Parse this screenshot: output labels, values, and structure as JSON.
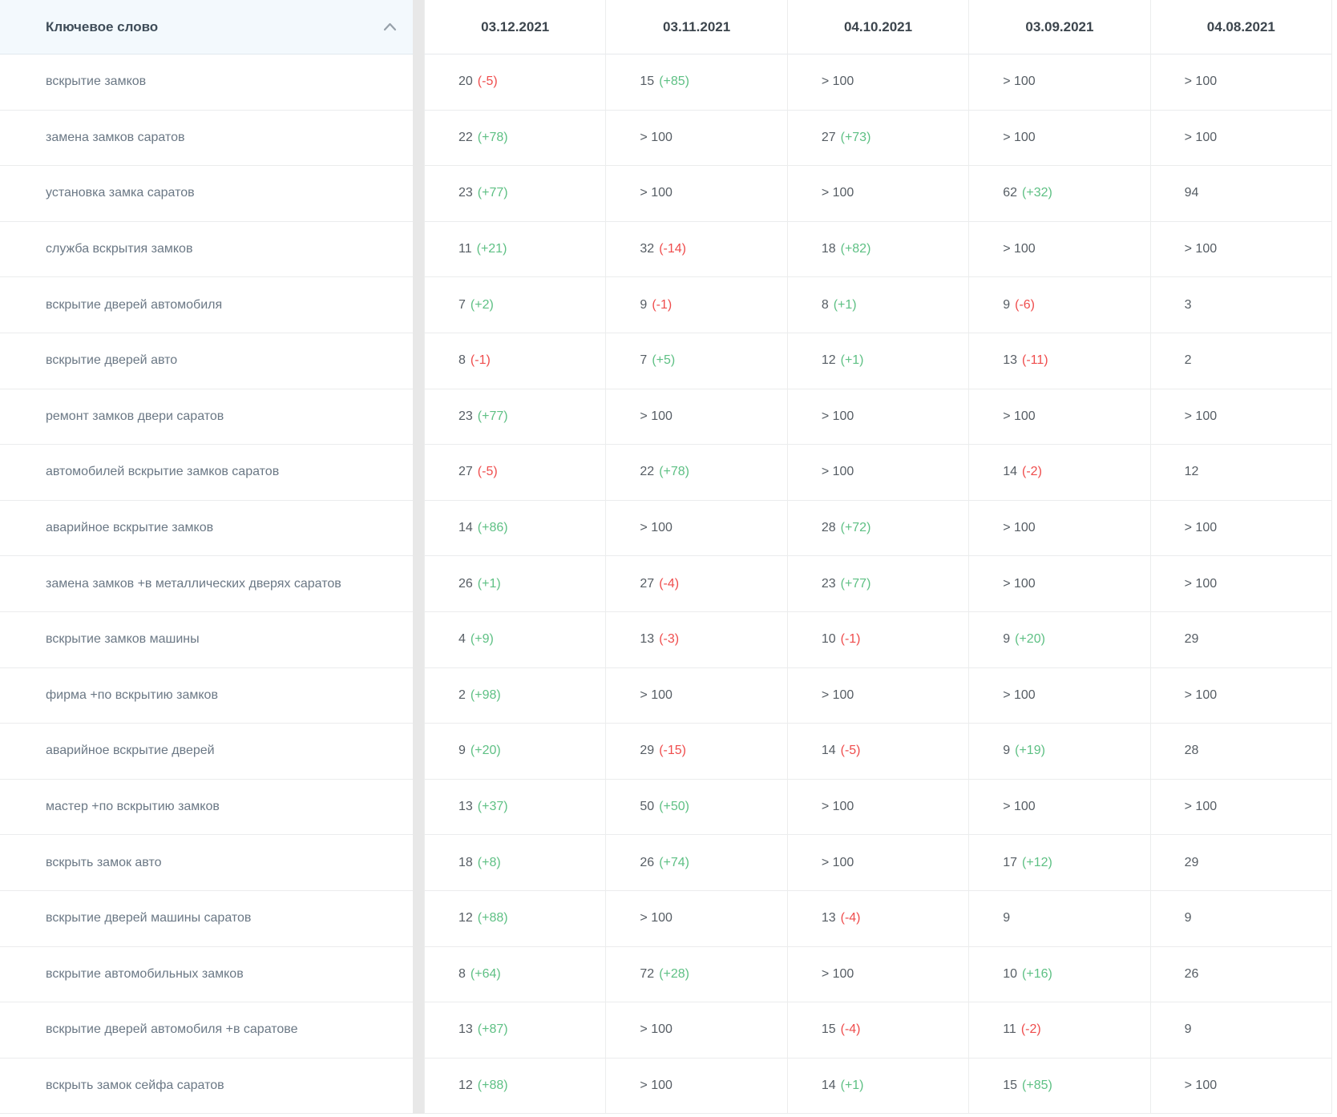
{
  "header": {
    "keyword_column_label": "Ключевое слово",
    "sort_icon": "chevron-up-icon",
    "date_columns": [
      "03.12.2021",
      "03.11.2021",
      "04.10.2021",
      "03.09.2021",
      "04.08.2021"
    ]
  },
  "colors": {
    "positive_change": "#5ec084",
    "negative_change": "#ef4c4c",
    "header_bg": "#f3f9fd",
    "gap_strip": "#e8e8e8"
  },
  "rows": [
    {
      "keyword": "вскрытие замков",
      "cells": [
        {
          "value": "20",
          "change": "(-5)",
          "trend": "down"
        },
        {
          "value": "15",
          "change": "(+85)",
          "trend": "up"
        },
        {
          "value": "> 100"
        },
        {
          "value": "> 100"
        },
        {
          "value": "> 100"
        }
      ]
    },
    {
      "keyword": "замена замков саратов",
      "cells": [
        {
          "value": "22",
          "change": "(+78)",
          "trend": "up"
        },
        {
          "value": "> 100"
        },
        {
          "value": "27",
          "change": "(+73)",
          "trend": "up"
        },
        {
          "value": "> 100"
        },
        {
          "value": "> 100"
        }
      ]
    },
    {
      "keyword": "установка замка саратов",
      "cells": [
        {
          "value": "23",
          "change": "(+77)",
          "trend": "up"
        },
        {
          "value": "> 100"
        },
        {
          "value": "> 100"
        },
        {
          "value": "62",
          "change": "(+32)",
          "trend": "up"
        },
        {
          "value": "94"
        }
      ]
    },
    {
      "keyword": "служба вскрытия замков",
      "cells": [
        {
          "value": "11",
          "change": "(+21)",
          "trend": "up"
        },
        {
          "value": "32",
          "change": "(-14)",
          "trend": "down"
        },
        {
          "value": "18",
          "change": "(+82)",
          "trend": "up"
        },
        {
          "value": "> 100"
        },
        {
          "value": "> 100"
        }
      ]
    },
    {
      "keyword": "вскрытие дверей автомобиля",
      "cells": [
        {
          "value": "7",
          "change": "(+2)",
          "trend": "up"
        },
        {
          "value": "9",
          "change": "(-1)",
          "trend": "down"
        },
        {
          "value": "8",
          "change": "(+1)",
          "trend": "up"
        },
        {
          "value": "9",
          "change": "(-6)",
          "trend": "down"
        },
        {
          "value": "3"
        }
      ]
    },
    {
      "keyword": "вскрытие дверей авто",
      "cells": [
        {
          "value": "8",
          "change": "(-1)",
          "trend": "down"
        },
        {
          "value": "7",
          "change": "(+5)",
          "trend": "up"
        },
        {
          "value": "12",
          "change": "(+1)",
          "trend": "up"
        },
        {
          "value": "13",
          "change": "(-11)",
          "trend": "down"
        },
        {
          "value": "2"
        }
      ]
    },
    {
      "keyword": "ремонт замков двери саратов",
      "cells": [
        {
          "value": "23",
          "change": "(+77)",
          "trend": "up"
        },
        {
          "value": "> 100"
        },
        {
          "value": "> 100"
        },
        {
          "value": "> 100"
        },
        {
          "value": "> 100"
        }
      ]
    },
    {
      "keyword": "автомобилей вскрытие замков саратов",
      "cells": [
        {
          "value": "27",
          "change": "(-5)",
          "trend": "down"
        },
        {
          "value": "22",
          "change": "(+78)",
          "trend": "up"
        },
        {
          "value": "> 100"
        },
        {
          "value": "14",
          "change": "(-2)",
          "trend": "down"
        },
        {
          "value": "12"
        }
      ]
    },
    {
      "keyword": "аварийное вскрытие замков",
      "cells": [
        {
          "value": "14",
          "change": "(+86)",
          "trend": "up"
        },
        {
          "value": "> 100"
        },
        {
          "value": "28",
          "change": "(+72)",
          "trend": "up"
        },
        {
          "value": "> 100"
        },
        {
          "value": "> 100"
        }
      ]
    },
    {
      "keyword": "замена замков +в металлических дверях саратов",
      "cells": [
        {
          "value": "26",
          "change": "(+1)",
          "trend": "up"
        },
        {
          "value": "27",
          "change": "(-4)",
          "trend": "down"
        },
        {
          "value": "23",
          "change": "(+77)",
          "trend": "up"
        },
        {
          "value": "> 100"
        },
        {
          "value": "> 100"
        }
      ]
    },
    {
      "keyword": "вскрытие замков машины",
      "cells": [
        {
          "value": "4",
          "change": "(+9)",
          "trend": "up"
        },
        {
          "value": "13",
          "change": "(-3)",
          "trend": "down"
        },
        {
          "value": "10",
          "change": "(-1)",
          "trend": "down"
        },
        {
          "value": "9",
          "change": "(+20)",
          "trend": "up"
        },
        {
          "value": "29"
        }
      ]
    },
    {
      "keyword": "фирма +по вскрытию замков",
      "cells": [
        {
          "value": "2",
          "change": "(+98)",
          "trend": "up"
        },
        {
          "value": "> 100"
        },
        {
          "value": "> 100"
        },
        {
          "value": "> 100"
        },
        {
          "value": "> 100"
        }
      ]
    },
    {
      "keyword": "аварийное вскрытие дверей",
      "cells": [
        {
          "value": "9",
          "change": "(+20)",
          "trend": "up"
        },
        {
          "value": "29",
          "change": "(-15)",
          "trend": "down"
        },
        {
          "value": "14",
          "change": "(-5)",
          "trend": "down"
        },
        {
          "value": "9",
          "change": "(+19)",
          "trend": "up"
        },
        {
          "value": "28"
        }
      ]
    },
    {
      "keyword": "мастер +по вскрытию замков",
      "cells": [
        {
          "value": "13",
          "change": "(+37)",
          "trend": "up"
        },
        {
          "value": "50",
          "change": "(+50)",
          "trend": "up"
        },
        {
          "value": "> 100"
        },
        {
          "value": "> 100"
        },
        {
          "value": "> 100"
        }
      ]
    },
    {
      "keyword": "вскрыть замок авто",
      "cells": [
        {
          "value": "18",
          "change": "(+8)",
          "trend": "up"
        },
        {
          "value": "26",
          "change": "(+74)",
          "trend": "up"
        },
        {
          "value": "> 100"
        },
        {
          "value": "17",
          "change": "(+12)",
          "trend": "up"
        },
        {
          "value": "29"
        }
      ]
    },
    {
      "keyword": "вскрытие дверей машины саратов",
      "cells": [
        {
          "value": "12",
          "change": "(+88)",
          "trend": "up"
        },
        {
          "value": "> 100"
        },
        {
          "value": "13",
          "change": "(-4)",
          "trend": "down"
        },
        {
          "value": "9"
        },
        {
          "value": "9"
        }
      ]
    },
    {
      "keyword": "вскрытие автомобильных замков",
      "cells": [
        {
          "value": "8",
          "change": "(+64)",
          "trend": "up"
        },
        {
          "value": "72",
          "change": "(+28)",
          "trend": "up"
        },
        {
          "value": "> 100"
        },
        {
          "value": "10",
          "change": "(+16)",
          "trend": "up"
        },
        {
          "value": "26"
        }
      ]
    },
    {
      "keyword": "вскрытие дверей автомобиля +в саратове",
      "cells": [
        {
          "value": "13",
          "change": "(+87)",
          "trend": "up"
        },
        {
          "value": "> 100"
        },
        {
          "value": "15",
          "change": "(-4)",
          "trend": "down"
        },
        {
          "value": "11",
          "change": "(-2)",
          "trend": "down"
        },
        {
          "value": "9"
        }
      ]
    },
    {
      "keyword": "вскрыть замок сейфа саратов",
      "cells": [
        {
          "value": "12",
          "change": "(+88)",
          "trend": "up"
        },
        {
          "value": "> 100"
        },
        {
          "value": "14",
          "change": "(+1)",
          "trend": "up"
        },
        {
          "value": "15",
          "change": "(+85)",
          "trend": "up"
        },
        {
          "value": "> 100"
        }
      ]
    }
  ]
}
